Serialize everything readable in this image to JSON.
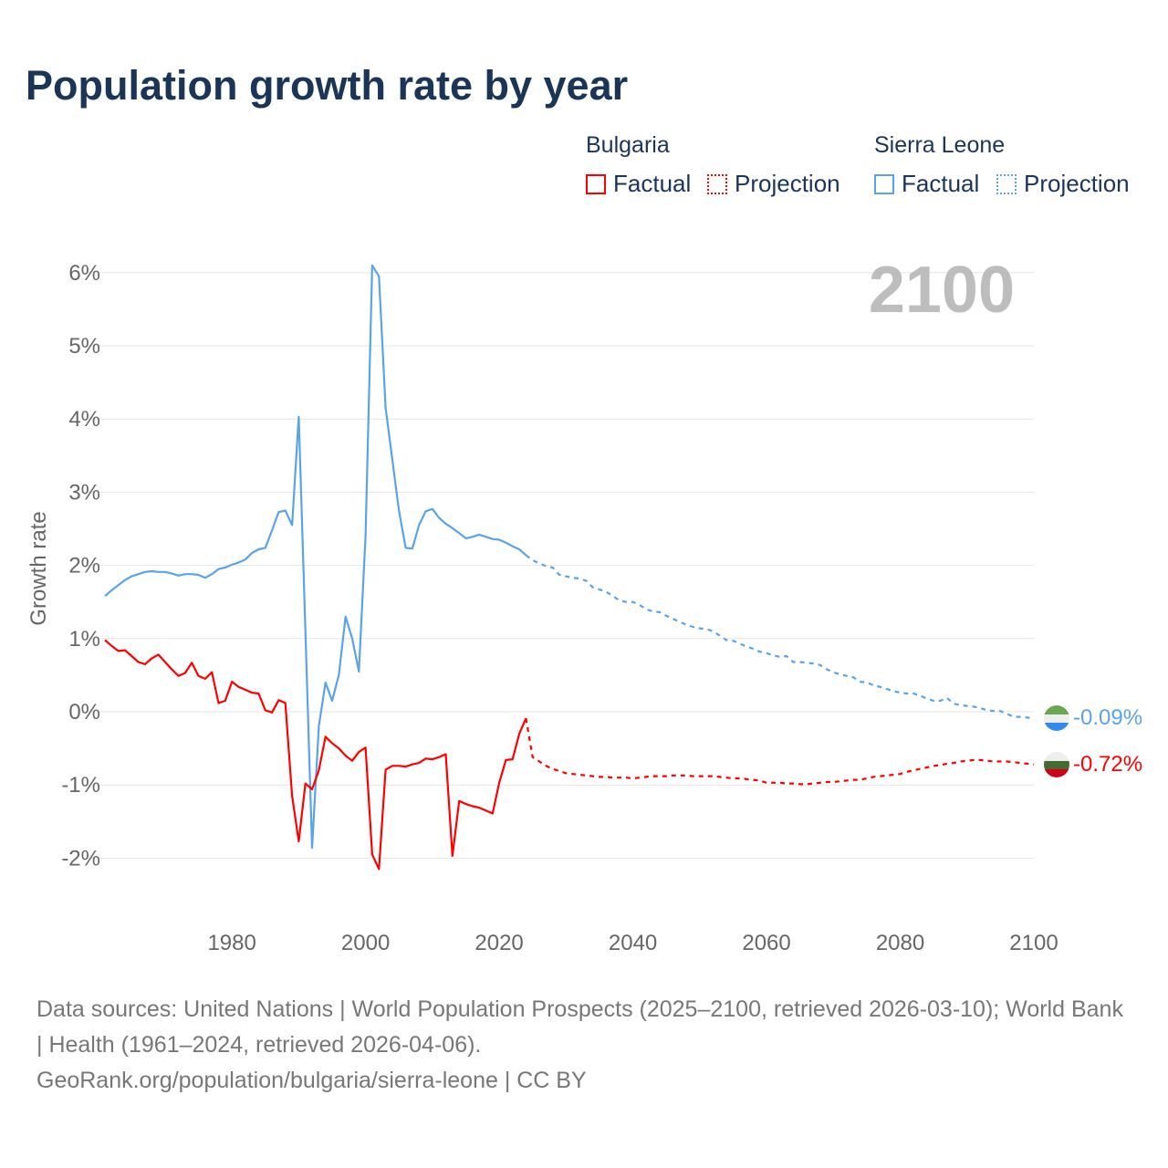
{
  "title": "Population growth rate by year",
  "legend": {
    "groups": [
      {
        "country": "Bulgaria",
        "color": "#ff0000",
        "factual": "Factual",
        "projection": "Projection"
      },
      {
        "country": "Sierra Leone",
        "color": "#5ba3e8",
        "factual": "Factual",
        "projection": "Projection"
      }
    ]
  },
  "year_watermark": "2100",
  "end_labels": {
    "sierra_leone": "-0.09%",
    "bulgaria": "-0.72%"
  },
  "footer": {
    "sources": "Data sources: United Nations | World Population Prospects (2025–2100, retrieved 2026-03-10); World Bank | Health (1961–2024, retrieved 2026-04-06).",
    "link": "GeoRank.org/population/bulgaria/sierra-leone | CC BY"
  },
  "chart_data": {
    "type": "line",
    "title": "Population growth rate by year",
    "xlabel": "",
    "ylabel": "Growth rate",
    "xlim": [
      1961,
      2100
    ],
    "ylim": [
      -2.5,
      6.2
    ],
    "xticks": [
      1980,
      2000,
      2020,
      2040,
      2060,
      2080,
      2100
    ],
    "yticks": [
      -2,
      -1,
      0,
      1,
      2,
      3,
      4,
      5,
      6
    ],
    "ytick_labels": [
      "-2%",
      "-1%",
      "0%",
      "1%",
      "2%",
      "3%",
      "4%",
      "5%",
      "6%"
    ],
    "grid": true,
    "legend_position": "top-right",
    "series": [
      {
        "name": "Sierra Leone",
        "kind": "Factual",
        "color": "#5ba3e8",
        "start_year": 1961,
        "values": [
          1.58,
          1.66,
          1.73,
          1.8,
          1.85,
          1.88,
          1.91,
          1.92,
          1.91,
          1.91,
          1.89,
          1.86,
          1.88,
          1.88,
          1.87,
          1.83,
          1.88,
          1.95,
          1.97,
          2.01,
          2.04,
          2.08,
          2.17,
          2.22,
          2.24,
          2.48,
          2.73,
          2.75,
          2.55,
          4.03,
          1.1,
          -1.86,
          -0.2,
          0.4,
          0.15,
          0.5,
          1.3,
          1.0,
          0.55,
          2.4,
          6.1,
          5.95,
          4.15,
          3.45,
          2.75,
          2.24,
          2.23,
          2.55,
          2.74,
          2.77,
          2.65,
          2.57,
          2.51,
          2.44,
          2.37,
          2.39,
          2.42,
          2.39,
          2.36,
          2.35,
          2.31,
          2.26,
          2.22,
          2.14
        ]
      },
      {
        "name": "Sierra Leone",
        "kind": "Projection",
        "color": "#5ba3e8",
        "start_year": 2024,
        "values": [
          2.14,
          2.07,
          2.03,
          1.99,
          1.97,
          1.87,
          1.85,
          1.83,
          1.82,
          1.79,
          1.7,
          1.67,
          1.64,
          1.58,
          1.52,
          1.5,
          1.5,
          1.46,
          1.4,
          1.37,
          1.36,
          1.31,
          1.27,
          1.23,
          1.19,
          1.16,
          1.14,
          1.13,
          1.1,
          1.04,
          0.98,
          0.97,
          0.93,
          0.89,
          0.86,
          0.82,
          0.8,
          0.77,
          0.75,
          0.76,
          0.68,
          0.68,
          0.67,
          0.66,
          0.64,
          0.58,
          0.54,
          0.51,
          0.49,
          0.47,
          0.41,
          0.4,
          0.36,
          0.34,
          0.31,
          0.28,
          0.26,
          0.25,
          0.25,
          0.22,
          0.18,
          0.15,
          0.15,
          0.19,
          0.11,
          0.09,
          0.08,
          0.07,
          0.05,
          0.02,
          0.01,
          0.01,
          -0.03,
          -0.07,
          -0.07,
          -0.08,
          -0.09
        ]
      },
      {
        "name": "Bulgaria",
        "kind": "Factual",
        "color": "#ff0000",
        "start_year": 1961,
        "values": [
          0.98,
          0.9,
          0.83,
          0.84,
          0.76,
          0.68,
          0.65,
          0.73,
          0.78,
          0.68,
          0.58,
          0.49,
          0.53,
          0.67,
          0.49,
          0.45,
          0.54,
          0.12,
          0.15,
          0.41,
          0.34,
          0.3,
          0.26,
          0.25,
          0.02,
          -0.01,
          0.16,
          0.12,
          -1.15,
          -1.77,
          -0.98,
          -1.06,
          -0.8,
          -0.34,
          -0.43,
          -0.5,
          -0.6,
          -0.67,
          -0.55,
          -0.49,
          -1.95,
          -2.15,
          -0.79,
          -0.74,
          -0.74,
          -0.75,
          -0.72,
          -0.7,
          -0.64,
          -0.65,
          -0.62,
          -0.58,
          -1.97,
          -1.22,
          -1.26,
          -1.29,
          -1.31,
          -1.35,
          -1.39,
          -0.97,
          -0.66,
          -0.65,
          -0.3,
          -0.09
        ]
      },
      {
        "name": "Bulgaria",
        "kind": "Projection",
        "color": "#ff0000",
        "start_year": 2024,
        "values": [
          -0.09,
          -0.62,
          -0.68,
          -0.74,
          -0.78,
          -0.81,
          -0.84,
          -0.85,
          -0.86,
          -0.87,
          -0.88,
          -0.89,
          -0.89,
          -0.9,
          -0.9,
          -0.9,
          -0.91,
          -0.9,
          -0.89,
          -0.88,
          -0.88,
          -0.88,
          -0.87,
          -0.87,
          -0.87,
          -0.88,
          -0.88,
          -0.88,
          -0.88,
          -0.89,
          -0.9,
          -0.91,
          -0.91,
          -0.92,
          -0.93,
          -0.94,
          -0.97,
          -0.97,
          -0.97,
          -0.98,
          -0.98,
          -0.99,
          -0.99,
          -0.98,
          -0.97,
          -0.96,
          -0.96,
          -0.95,
          -0.94,
          -0.93,
          -0.93,
          -0.91,
          -0.89,
          -0.88,
          -0.87,
          -0.86,
          -0.85,
          -0.82,
          -0.8,
          -0.78,
          -0.76,
          -0.74,
          -0.73,
          -0.71,
          -0.7,
          -0.68,
          -0.67,
          -0.66,
          -0.66,
          -0.67,
          -0.68,
          -0.68,
          -0.68,
          -0.69,
          -0.7,
          -0.71,
          -0.72
        ]
      }
    ]
  }
}
